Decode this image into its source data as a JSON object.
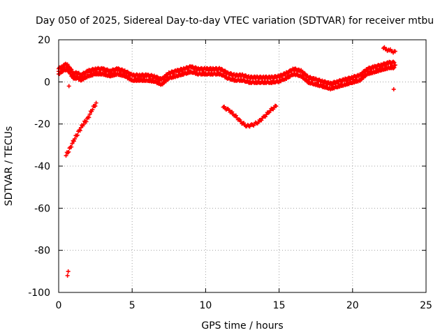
{
  "chart_data": {
    "type": "scatter",
    "title": "Day 050 of 2025, Sidereal Day-to-day VTEC variation (SDTVAR) for receiver mtbu",
    "xlabel": "GPS time / hours",
    "ylabel": "SDTVAR / TECUs",
    "xlim": [
      0,
      25
    ],
    "ylim": [
      -100,
      20
    ],
    "xticks": [
      0,
      5,
      10,
      15,
      20,
      25
    ],
    "yticks": [
      20,
      0,
      -20,
      -40,
      -60,
      -80,
      -100
    ],
    "grid": true,
    "marker": "plus",
    "color": "#ff0000",
    "series": [
      {
        "name": "main-band",
        "x": [
          0.0,
          0.2,
          0.4,
          0.6,
          0.8,
          1.0,
          1.3,
          1.5,
          2.0,
          2.5,
          3.0,
          3.5,
          4.0,
          4.5,
          5.0,
          5.5,
          6.0,
          6.5,
          7.0,
          7.5,
          8.0,
          8.5,
          9.0,
          9.5,
          10.0,
          10.5,
          11.0,
          11.5,
          12.0,
          12.5,
          13.0,
          13.5,
          14.0,
          14.5,
          15.0,
          15.5,
          16.0,
          16.5,
          17.0,
          17.5,
          18.0,
          18.5,
          19.0,
          19.5,
          20.0,
          20.5,
          21.0,
          21.5,
          22.0,
          22.5,
          22.9
        ],
        "y": [
          5,
          6,
          7,
          7,
          5,
          3,
          3,
          2,
          4,
          5,
          5,
          4,
          5,
          4,
          2,
          2,
          2,
          1.5,
          0,
          3,
          4,
          5,
          6,
          5,
          5,
          5,
          5,
          3,
          2,
          2,
          1,
          1,
          1,
          1,
          1.5,
          3,
          5,
          4,
          1,
          0,
          -1,
          -2,
          -1,
          0,
          1,
          2,
          5,
          6,
          7,
          8,
          8
        ],
        "thickness": 2.5
      },
      {
        "name": "upper-cluster",
        "x": [
          22.1,
          22.3,
          22.5,
          22.7,
          22.9
        ],
        "y": [
          16,
          15.5,
          15,
          14.5,
          14.5
        ],
        "thickness": 1
      },
      {
        "name": "early-rise",
        "x": [
          0.5,
          0.8,
          1.1,
          1.4,
          1.7,
          2.0,
          2.3,
          2.55
        ],
        "y": [
          -35,
          -31,
          -27,
          -23,
          -20,
          -17,
          -13,
          -10
        ],
        "thickness": 1.2
      },
      {
        "name": "midday-dip",
        "x": [
          11.2,
          11.6,
          12.0,
          12.4,
          12.8,
          13.2,
          13.6,
          14.0,
          14.4,
          14.8
        ],
        "y": [
          -12,
          -13.5,
          -16,
          -19,
          -21,
          -20.5,
          -19,
          -16.5,
          -13.5,
          -11.5
        ],
        "thickness": 0.8
      },
      {
        "name": "outliers",
        "x": [
          0.7,
          22.8,
          0.6,
          0.65
        ],
        "y": [
          -2,
          -3.5,
          -92,
          -90
        ],
        "thickness": 0.6
      }
    ]
  }
}
